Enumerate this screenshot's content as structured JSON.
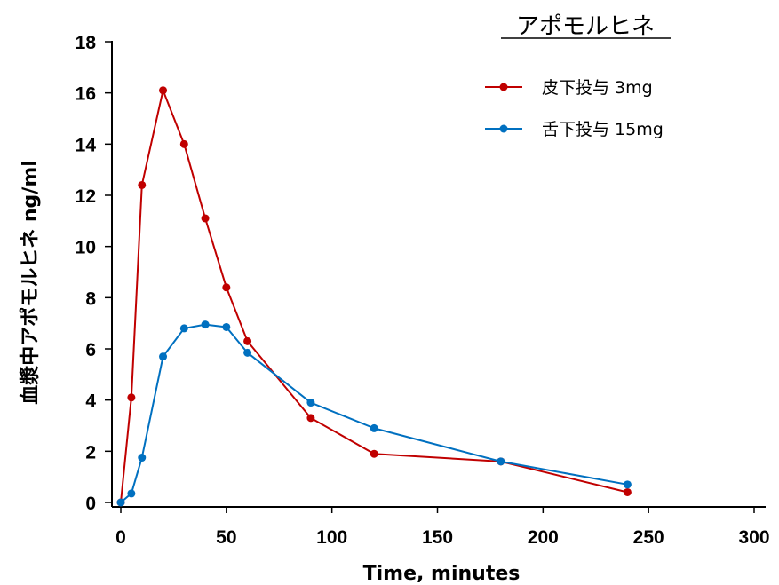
{
  "chart_data": {
    "type": "line",
    "title": "アポモルヒネ",
    "xlabel": "Time, minutes",
    "ylabel": "血漿中アポモルヒネ ng/ml",
    "xlim": [
      0,
      300
    ],
    "ylim": [
      0,
      18
    ],
    "x_ticks": [
      0,
      50,
      100,
      150,
      200,
      250,
      300
    ],
    "y_ticks": [
      0,
      2,
      4,
      6,
      8,
      10,
      12,
      14,
      16,
      18
    ],
    "grid": false,
    "legend_position": "top-right",
    "series": [
      {
        "name": "皮下投与 3mg",
        "color": "#c00000",
        "x": [
          0,
          5,
          10,
          20,
          30,
          40,
          50,
          60,
          90,
          120,
          180,
          240
        ],
        "y": [
          0.0,
          4.1,
          12.4,
          16.1,
          14.0,
          11.1,
          8.4,
          6.3,
          3.3,
          1.9,
          1.6,
          0.4
        ]
      },
      {
        "name": "舌下投与 15mg",
        "color": "#0070c0",
        "x": [
          0,
          5,
          10,
          20,
          30,
          40,
          50,
          60,
          90,
          120,
          180,
          240
        ],
        "y": [
          0.0,
          0.35,
          1.75,
          5.7,
          6.8,
          6.95,
          6.85,
          5.85,
          3.9,
          2.9,
          1.6,
          0.7
        ]
      }
    ]
  }
}
